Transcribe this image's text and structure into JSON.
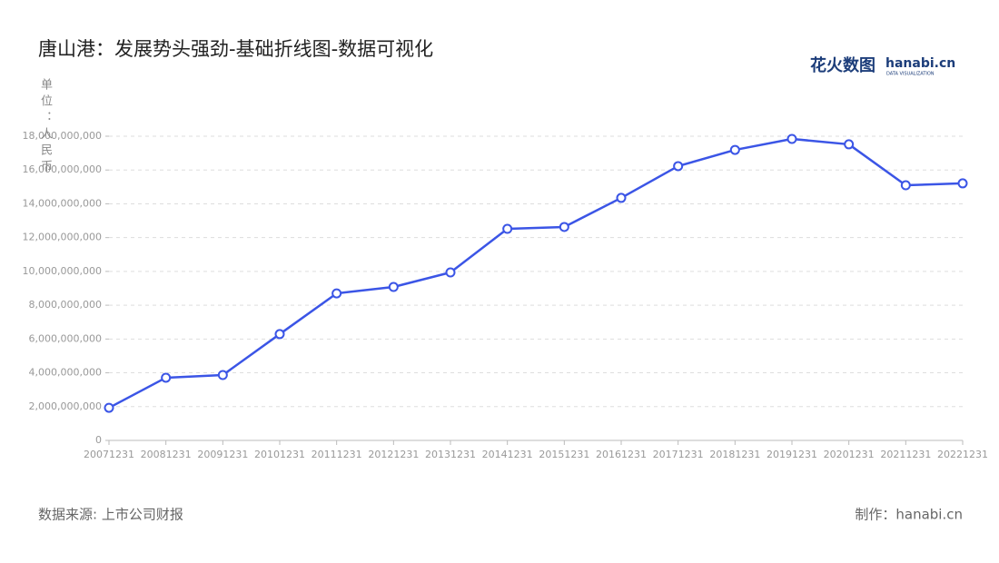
{
  "chart_data": {
    "type": "line",
    "title": "唐山港：发展势头强劲-基础折线图-数据可视化",
    "y_label": "单位：人民币",
    "source": "数据来源: 上市公司财报",
    "credit": "制作：hanabi.cn",
    "logo": {
      "name": "花火数图",
      "brand": "hanabi.cn",
      "tagline": "DATA VISUALIZATION"
    },
    "categories": [
      "20071231",
      "20081231",
      "20091231",
      "20101231",
      "20111231",
      "20121231",
      "20131231",
      "20141231",
      "20151231",
      "20161231",
      "20171231",
      "20181231",
      "20191231",
      "20201231",
      "20211231",
      "20221231"
    ],
    "series": [
      {
        "name": "唐山港",
        "color": "#3b55e6",
        "values": [
          1930000000,
          3710000000,
          3870000000,
          6290000000,
          8700000000,
          9080000000,
          9940000000,
          12520000000,
          12630000000,
          14350000000,
          16230000000,
          17190000000,
          17840000000,
          17520000000,
          15100000000,
          15210000000
        ]
      }
    ],
    "ylim": [
      0,
      18000000000
    ],
    "yticks": [
      0,
      {
        "value": 2000000000,
        "label": "2,000,000,000"
      },
      {
        "value": 4000000000,
        "label": "4,000,000,000"
      },
      {
        "value": 6000000000,
        "label": "6,000,000,000"
      },
      {
        "value": 8000000000,
        "label": "8,000,000,000"
      },
      {
        "value": 10000000000,
        "label": "10,000,000,000"
      },
      {
        "value": 12000000000,
        "label": "12,000,000,000"
      },
      {
        "value": 14000000000,
        "label": "14,000,000,000"
      },
      {
        "value": 16000000000,
        "label": "16,000,000,000"
      },
      {
        "value": 18000000000,
        "label": "18,000,000,000"
      }
    ],
    "grid": true
  }
}
